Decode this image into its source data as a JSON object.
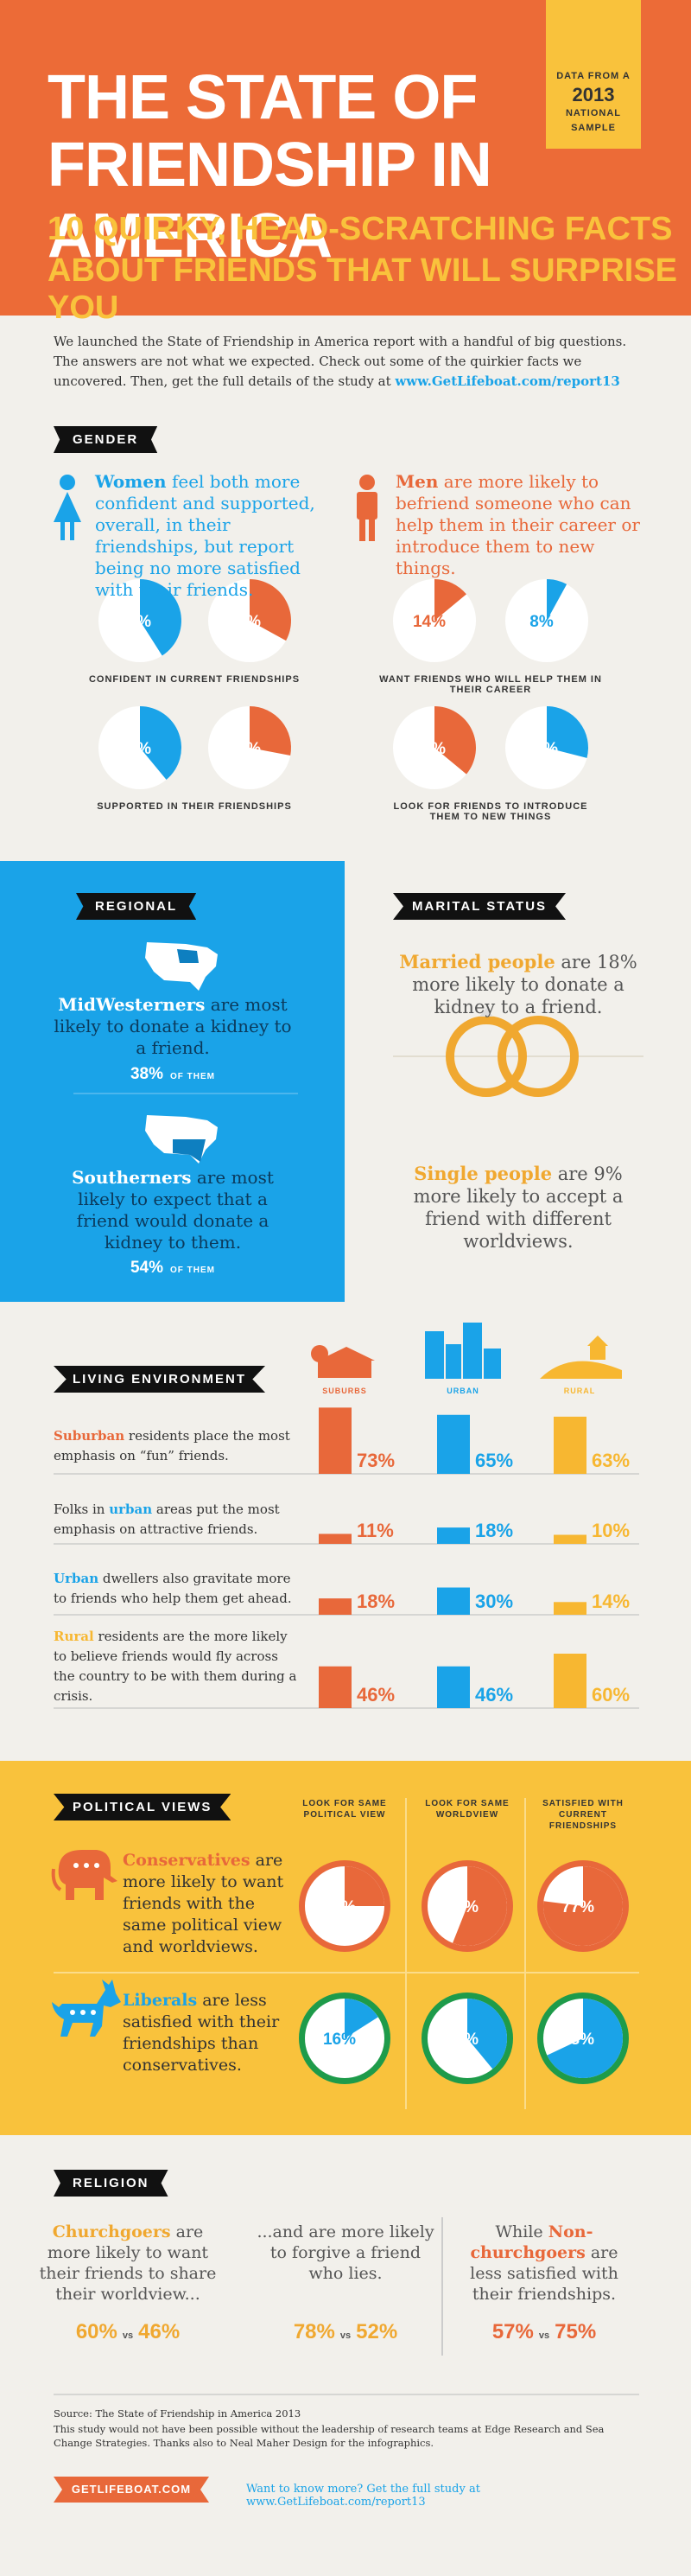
{
  "header": {
    "title_line1": "THE STATE OF",
    "title_line2": "FRIENDSHIP IN AMERICA",
    "subtitle_line1": "10 QUIRKY, HEAD-SCRATCHING FACTS",
    "subtitle_line2": "ABOUT FRIENDS THAT WILL SURPRISE YOU",
    "badge": [
      "DATA FROM A",
      "2013",
      "NATIONAL",
      "SAMPLE"
    ]
  },
  "intro": {
    "text": "We launched the State of Friendship in America report with a handful of big questions. The answers are not what we expected. Check out some of the quirkier facts we uncovered. Then, get the full details of the study at ",
    "link": "www.GetLifeboat.com/report13"
  },
  "gender": {
    "label": "GENDER",
    "women": [
      {
        "text": "Women",
        "color": "#1aa3e8"
      },
      {
        "text": " feel both more confident and supported, overall, in their friendships, but report being no more satisfied with their friends."
      }
    ],
    "men": [
      {
        "text": "Men",
        "color": "#e8683a"
      },
      {
        "text": " are more likely to befriend someone who can help them in their career or introduce them to new things."
      }
    ],
    "charts": [
      {
        "caption": "CONFIDENT IN CURRENT FRIENDSHIPS",
        "pies": [
          {
            "value": 41,
            "label": "41%",
            "color": "#1aa3e8"
          },
          {
            "value": 33,
            "label": "33%",
            "color": "#e8683a"
          }
        ]
      },
      {
        "caption": "SUPPORTED IN THEIR FRIENDSHIPS",
        "pies": [
          {
            "value": 39,
            "label": "39%",
            "color": "#1aa3e8"
          },
          {
            "value": 28,
            "label": "28%",
            "color": "#e8683a"
          }
        ]
      },
      {
        "caption": "WANT FRIENDS WHO WILL HELP THEM IN THEIR CAREER",
        "pies": [
          {
            "value": 14,
            "label": "14%",
            "color": "#e8683a"
          },
          {
            "value": 8,
            "label": "8%",
            "color": "#1aa3e8"
          }
        ]
      },
      {
        "caption": "LOOK FOR FRIENDS TO INTRODUCE THEM TO NEW THINGS",
        "pies": [
          {
            "value": 36,
            "label": "36%",
            "color": "#e8683a"
          },
          {
            "value": 29,
            "label": "29%",
            "color": "#1aa3e8"
          }
        ]
      }
    ]
  },
  "regional": {
    "label": "REGIONAL",
    "items": [
      {
        "segments": [
          {
            "text": "MidWesterners",
            "color": "#ffffff"
          },
          {
            "text": " are most likely to donate a kidney to a friend."
          }
        ],
        "stat": "38%",
        "stat_suffix": "OF THEM"
      },
      {
        "segments": [
          {
            "text": "Southerners",
            "color": "#ffffff"
          },
          {
            "text": " are most likely to expect that a friend would donate a kidney to them."
          }
        ],
        "stat": "54%",
        "stat_suffix": "OF THEM"
      }
    ]
  },
  "marital": {
    "label": "MARITAL STATUS",
    "married": [
      {
        "text": "Married people",
        "color": "#f0a830"
      },
      {
        "text": " are 18% more likely to donate a kidney to a friend."
      }
    ],
    "single": [
      {
        "text": "Single people",
        "color": "#f0a830"
      },
      {
        "text": " are 9% more likely to accept a friend with different worldviews."
      }
    ]
  },
  "living": {
    "label": "LIVING ENVIRONMENT",
    "columns": [
      {
        "name": "SUBURBS",
        "color": "#e8683a"
      },
      {
        "name": "URBAN",
        "color": "#1aa3e8"
      },
      {
        "name": "RURAL",
        "color": "#f7b731"
      }
    ],
    "rows": [
      {
        "segments": [
          {
            "text": "Suburban",
            "color": "#e8683a"
          },
          {
            "text": " residents place the most emphasis on “fun” friends."
          }
        ],
        "values": [
          73,
          65,
          63
        ],
        "value_labels": [
          "73%",
          "65%",
          "63%"
        ]
      },
      {
        "segments": [
          {
            "text": "Folks in "
          },
          {
            "text": "urban",
            "color": "#1aa3e8"
          },
          {
            "text": " areas put the most emphasis on attractive friends."
          }
        ],
        "values": [
          11,
          18,
          10
        ],
        "value_labels": [
          "11%",
          "18%",
          "10%"
        ]
      },
      {
        "segments": [
          {
            "text": "Urban",
            "color": "#1aa3e8"
          },
          {
            "text": " dwellers also gravitate more to friends who help them get ahead."
          }
        ],
        "values": [
          18,
          30,
          14
        ],
        "value_labels": [
          "18%",
          "30%",
          "14%"
        ]
      },
      {
        "segments": [
          {
            "text": "Rural",
            "color": "#f7b731"
          },
          {
            "text": " residents are the more likely to believe friends would fly across the country to be with them during a crisis."
          }
        ],
        "values": [
          46,
          46,
          60
        ],
        "value_labels": [
          "46%",
          "46%",
          "60%"
        ]
      }
    ]
  },
  "political": {
    "label": "POLITICAL VIEWS",
    "columns": [
      "LOOK FOR SAME POLITICAL VIEW",
      "LOOK FOR SAME WORLDVIEW",
      "SATISFIED WITH CURRENT FRIENDSHIPS"
    ],
    "groups": [
      {
        "segments": [
          {
            "text": "Conservatives",
            "color": "#e8683a"
          },
          {
            "text": " are more likely to want friends with the same political view and worldviews."
          }
        ],
        "color": "#e8683a",
        "ring": "#e8683a",
        "values": [
          25,
          56,
          77
        ],
        "value_labels": [
          "25%",
          "56%",
          "77%"
        ]
      },
      {
        "segments": [
          {
            "text": "Liberals",
            "color": "#1aa3e8"
          },
          {
            "text": " are less satisfied with their friendships than conservatives."
          }
        ],
        "color": "#1aa3e8",
        "ring": "#1e9b4a",
        "values": [
          16,
          39,
          68
        ],
        "value_labels": [
          "16%",
          "39%",
          "68%"
        ]
      }
    ]
  },
  "religion": {
    "label": "RELIGION",
    "columns": [
      {
        "segments": [
          {
            "text": "Churchgoers",
            "color": "#f0a830"
          },
          {
            "text": " are more likely to want their friends to share their worldview..."
          }
        ],
        "stat1": "60%",
        "vs": "vs",
        "stat2": "46%",
        "color": "#f0a830"
      },
      {
        "segments": [
          {
            "text": "...and are more likely to forgive a friend who lies."
          }
        ],
        "stat1": "78%",
        "vs": "vs",
        "stat2": "52%",
        "color": "#f0a830"
      },
      {
        "segments": [
          {
            "text": "While "
          },
          {
            "text": "Non-churchgoers",
            "color": "#e8683a"
          },
          {
            "text": " are less satisfied with their friendships."
          }
        ],
        "stat1": "57%",
        "vs": "vs",
        "stat2": "75%",
        "color": "#e8683a"
      }
    ]
  },
  "footer": {
    "source": "Source: The State of Friendship in America 2013",
    "credits": "This study would not have been possible without the leadership of research teams at Edge Research and Sea Change Strategies. Thanks also to Neal Maher Design for the infographics.",
    "logo": "GETLIFEBOAT.COM",
    "cta": "Want to know more? Get the full study at www.GetLifeboat.com/report13"
  }
}
